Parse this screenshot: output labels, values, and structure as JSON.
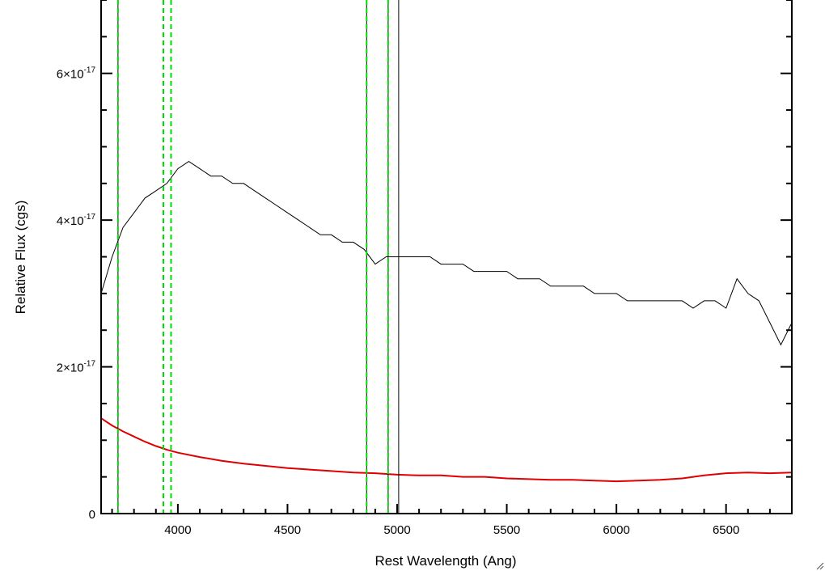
{
  "chart_data": {
    "type": "line",
    "title": "",
    "xlabel": "Rest Wavelength (Ang)",
    "ylabel": "Relative Flux (cgs)",
    "xlim": [
      3650,
      6800
    ],
    "ylim": [
      0,
      7e-17
    ],
    "x_ticks": [
      4000,
      4500,
      5000,
      5500,
      6000,
      6500
    ],
    "x_tick_labels": [
      "4000",
      "4500",
      "5000",
      "5500",
      "6000",
      "6500"
    ],
    "y_ticks": [
      0,
      2e-17,
      4e-17,
      6e-17
    ],
    "y_tick_labels": [
      {
        "mantissa": "0",
        "exponent": ""
      },
      {
        "mantissa": "2×10",
        "exponent": "-17"
      },
      {
        "mantissa": "4×10",
        "exponent": "-17"
      },
      {
        "mantissa": "6×10",
        "exponent": "-17"
      }
    ],
    "grid": false,
    "series": [
      {
        "color": "#000000",
        "x": [
          3650,
          3700,
          3750,
          3800,
          3850,
          3900,
          3950,
          4000,
          4050,
          4100,
          4150,
          4200,
          4250,
          4300,
          4350,
          4400,
          4450,
          4500,
          4550,
          4600,
          4650,
          4700,
          4750,
          4800,
          4850,
          4900,
          4950,
          5000,
          5050,
          5100,
          5150,
          5200,
          5250,
          5300,
          5350,
          5400,
          5450,
          5500,
          5550,
          5600,
          5650,
          5700,
          5750,
          5800,
          5850,
          5900,
          5950,
          6000,
          6050,
          6100,
          6150,
          6200,
          6250,
          6300,
          6350,
          6400,
          6450,
          6500,
          6550,
          6600,
          6650,
          6700,
          6750,
          6800
        ],
        "y": [
          3e-17,
          3.5e-17,
          3.9e-17,
          4.1e-17,
          4.3e-17,
          4.4e-17,
          4.5e-17,
          4.7e-17,
          4.8e-17,
          4.7e-17,
          4.6e-17,
          4.6e-17,
          4.5e-17,
          4.5e-17,
          4.4e-17,
          4.3e-17,
          4.2e-17,
          4.1e-17,
          4e-17,
          3.9e-17,
          3.8e-17,
          3.8e-17,
          3.7e-17,
          3.7e-17,
          3.6e-17,
          3.4e-17,
          3.5e-17,
          3.5e-17,
          3.5e-17,
          3.5e-17,
          3.5e-17,
          3.4e-17,
          3.4e-17,
          3.4e-17,
          3.3e-17,
          3.3e-17,
          3.3e-17,
          3.3e-17,
          3.2e-17,
          3.2e-17,
          3.2e-17,
          3.1e-17,
          3.1e-17,
          3.1e-17,
          3.1e-17,
          3e-17,
          3e-17,
          3e-17,
          2.9e-17,
          2.9e-17,
          2.9e-17,
          2.9e-17,
          2.9e-17,
          2.9e-17,
          2.8e-17,
          2.9e-17,
          2.9e-17,
          2.8e-17,
          3.2e-17,
          3e-17,
          2.9e-17,
          2.6e-17,
          2.3e-17,
          2.6e-17
        ]
      },
      {
        "color": "#e00000",
        "x": [
          3650,
          3700,
          3750,
          3800,
          3850,
          3900,
          3950,
          4000,
          4100,
          4200,
          4300,
          4400,
          4500,
          4600,
          4700,
          4800,
          4900,
          5000,
          5100,
          5200,
          5300,
          5400,
          5500,
          5600,
          5700,
          5800,
          5900,
          6000,
          6100,
          6200,
          6300,
          6400,
          6500,
          6600,
          6700,
          6800
        ],
        "y": [
          1.3e-17,
          1.2e-17,
          1.12e-17,
          1.05e-17,
          9.8e-18,
          9.2e-18,
          8.7e-18,
          8.3e-18,
          7.7e-18,
          7.2e-18,
          6.8e-18,
          6.5e-18,
          6.2e-18,
          6e-18,
          5.8e-18,
          5.6e-18,
          5.5e-18,
          5.3e-18,
          5.2e-18,
          5.2e-18,
          5e-18,
          5e-18,
          4.8e-18,
          4.7e-18,
          4.6e-18,
          4.6e-18,
          4.5e-18,
          4.4e-18,
          4.5e-18,
          4.6e-18,
          4.8e-18,
          5.2e-18,
          5.5e-18,
          5.6e-18,
          5.5e-18,
          5.6e-18
        ]
      }
    ],
    "solid_vertical_lines": [
      3727,
      4861,
      4959,
      5007
    ],
    "dashed_vertical_lines_green": [
      3727,
      3934,
      3969,
      4861,
      4959
    ]
  }
}
